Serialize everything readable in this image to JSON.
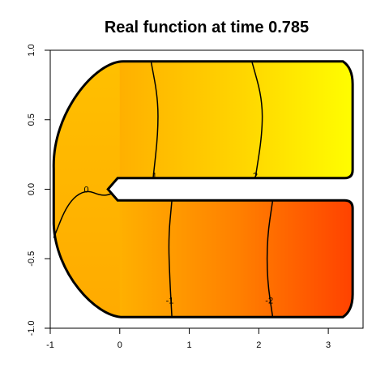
{
  "chart_data": {
    "type": "heatmap",
    "title": "Real function at time 0.785",
    "xlabel": "",
    "ylabel": "",
    "xlim": [
      -1,
      3.5
    ],
    "ylim": [
      -1,
      1
    ],
    "x_ticks": [
      {
        "value": -1,
        "label": "-1"
      },
      {
        "value": 0,
        "label": "0"
      },
      {
        "value": 1,
        "label": "1"
      },
      {
        "value": 2,
        "label": "2"
      },
      {
        "value": 3,
        "label": "3"
      }
    ],
    "y_ticks": [
      {
        "value": -1,
        "label": "-1.0"
      },
      {
        "value": -0.5,
        "label": "-0.5"
      },
      {
        "value": 0,
        "label": "0.0"
      },
      {
        "value": 0.5,
        "label": "0.5"
      },
      {
        "value": 1,
        "label": "1.0"
      }
    ],
    "grid": false,
    "colors": {
      "low": "#ff4000",
      "mid": "#ffb000",
      "high": "#ffff00",
      "outline": "#000000"
    },
    "domain": {
      "description_free_shape": true,
      "outer_left_x": -0.95,
      "right_x": 3.35,
      "top_y": 0.92,
      "bottom_y": -0.92,
      "slit_top_y": 0.08,
      "slit_bottom_y": -0.08,
      "slit_tip_x": -0.1,
      "right_cap_radius": 0.08
    },
    "contours": [
      {
        "level": "0",
        "points": [
          [
            -0.95,
            -0.35
          ],
          [
            -0.75,
            -0.1
          ],
          [
            -0.5,
            0.0
          ],
          [
            -0.25,
            -0.05
          ],
          [
            -0.1,
            -0.03
          ]
        ],
        "label_at": [
          -0.48,
          0.0
        ]
      },
      {
        "level": "1",
        "points": [
          [
            0.45,
            0.92
          ],
          [
            0.55,
            0.65
          ],
          [
            0.55,
            0.4
          ],
          [
            0.48,
            0.08
          ]
        ],
        "label_at": [
          0.5,
          0.1
        ]
      },
      {
        "level": "2",
        "points": [
          [
            1.9,
            0.92
          ],
          [
            2.05,
            0.65
          ],
          [
            2.05,
            0.4
          ],
          [
            1.95,
            0.08
          ]
        ],
        "label_at": [
          1.95,
          0.1
        ]
      },
      {
        "level": "-1",
        "points": [
          [
            0.75,
            -0.08
          ],
          [
            0.7,
            -0.35
          ],
          [
            0.72,
            -0.65
          ],
          [
            0.75,
            -0.92
          ]
        ],
        "label_at": [
          0.72,
          -0.8
        ]
      },
      {
        "level": "-2",
        "points": [
          [
            2.2,
            -0.08
          ],
          [
            2.12,
            -0.35
          ],
          [
            2.12,
            -0.65
          ],
          [
            2.2,
            -0.92
          ]
        ],
        "label_at": [
          2.15,
          -0.8
        ]
      }
    ]
  }
}
